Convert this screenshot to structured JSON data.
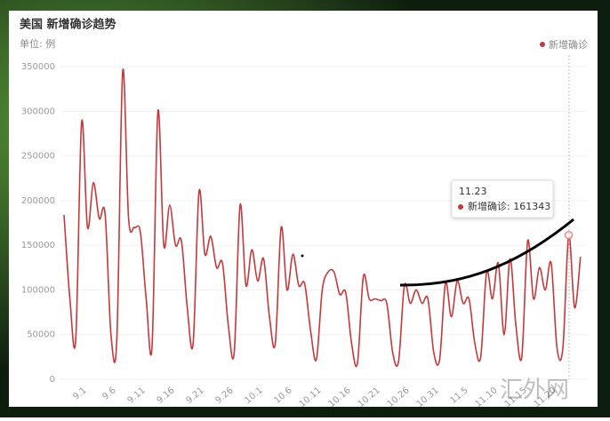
{
  "chart_data": {
    "type": "line",
    "title": "美国 新增确诊趋势",
    "subtitle": "单位: 例",
    "categories": [
      null,
      null,
      null,
      "9.1",
      null,
      null,
      null,
      null,
      "9.6",
      null,
      null,
      null,
      null,
      "9.11",
      null,
      null,
      null,
      null,
      "9.16",
      null,
      null,
      null,
      null,
      "9.21",
      null,
      null,
      null,
      null,
      "9.26",
      null,
      null,
      null,
      null,
      "10.1",
      null,
      null,
      null,
      null,
      "10.6",
      null,
      null,
      null,
      null,
      "10.11",
      null,
      null,
      null,
      null,
      "10.16",
      null,
      null,
      null,
      null,
      "10.21",
      null,
      null,
      null,
      null,
      "10.26",
      null,
      null,
      null,
      null,
      "10.31",
      null,
      null,
      null,
      null,
      "11.5",
      null,
      null,
      null,
      null,
      "11.10",
      null,
      null,
      null,
      null,
      "11.15",
      null,
      null,
      null,
      null,
      "11.20",
      null,
      null,
      null,
      null,
      null
    ],
    "series": [
      {
        "name": "新增确诊",
        "color": "#c8383a",
        "values": [
          184000,
          90000,
          45000,
          288000,
          170000,
          220000,
          180000,
          185000,
          50000,
          45000,
          345000,
          180000,
          170000,
          165000,
          90000,
          37000,
          300000,
          150000,
          195000,
          150000,
          155000,
          80000,
          40000,
          210000,
          140000,
          160000,
          125000,
          130000,
          60000,
          30000,
          195000,
          105000,
          145000,
          110000,
          135000,
          70000,
          40000,
          170000,
          100000,
          140000,
          105000,
          107000,
          55000,
          22000,
          100000,
          120000,
          120000,
          95000,
          97000,
          40000,
          18000,
          115000,
          90000,
          90000,
          88000,
          85000,
          30000,
          20000,
          105000,
          85000,
          100000,
          85000,
          90000,
          30000,
          22000,
          108000,
          70000,
          110000,
          85000,
          90000,
          40000,
          25000,
          120000,
          90000,
          130000,
          50000,
          135000,
          60000,
          25000,
          155000,
          90000,
          125000,
          100000,
          130000,
          35000,
          35000,
          161343,
          80000,
          137000
        ]
      }
    ],
    "ylim": [
      0,
      350000
    ],
    "yticks": [
      0,
      50000,
      100000,
      150000,
      200000,
      250000,
      300000,
      350000
    ],
    "grid": true,
    "legend": "top-right",
    "tooltip": {
      "title": "11.23"
    },
    "watermark": "汇外网"
  }
}
